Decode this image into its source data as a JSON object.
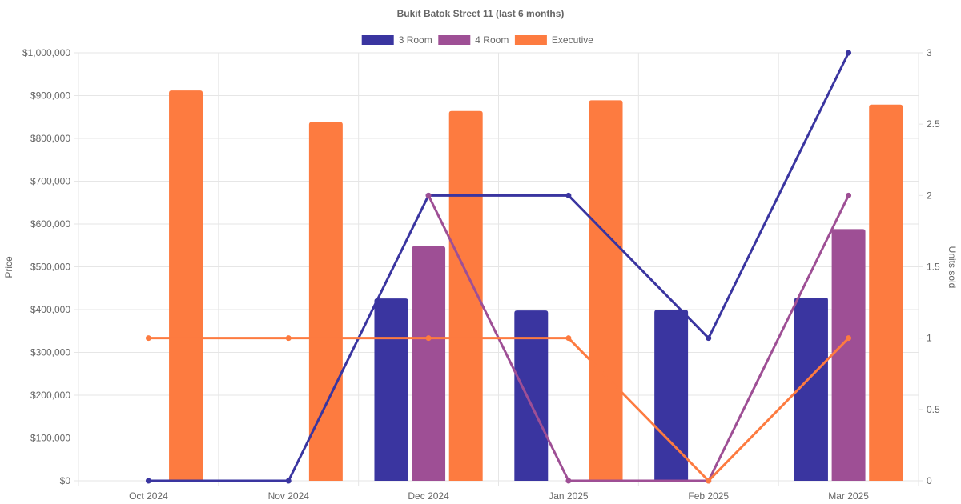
{
  "chart_data": {
    "type": "bar+line",
    "title": "Bukit Batok Street 11 (last 6 months)",
    "categories": [
      "Oct 2024",
      "Nov 2024",
      "Dec 2024",
      "Jan 2025",
      "Feb 2025",
      "Mar 2025"
    ],
    "y_left": {
      "label": "Price",
      "min": 0,
      "max": 1000000,
      "step": 100000,
      "ticks": [
        "$0",
        "$100,000",
        "$200,000",
        "$300,000",
        "$400,000",
        "$500,000",
        "$600,000",
        "$700,000",
        "$800,000",
        "$900,000",
        "$1,000,000"
      ]
    },
    "y_right": {
      "label": "Units sold",
      "min": 0,
      "max": 3,
      "step": 0.5,
      "ticks": [
        "0",
        "0.5",
        "1",
        "1.5",
        "2",
        "2.5",
        "3"
      ]
    },
    "legend_position": "top",
    "series": [
      {
        "name": "3 Room",
        "color": "#3a35a0",
        "price": [
          null,
          null,
          426000,
          398000,
          399000,
          428000
        ],
        "units": [
          0,
          0,
          2,
          2,
          1,
          3
        ]
      },
      {
        "name": "4 Room",
        "color": "#9e4f95",
        "price": [
          null,
          null,
          548000,
          null,
          null,
          588000
        ],
        "units": [
          null,
          null,
          2,
          0,
          0,
          2
        ]
      },
      {
        "name": "Executive",
        "color": "#fd7b40",
        "price": [
          912000,
          838000,
          864000,
          889000,
          null,
          879000
        ],
        "units": [
          1,
          1,
          1,
          1,
          0,
          1
        ]
      }
    ]
  }
}
